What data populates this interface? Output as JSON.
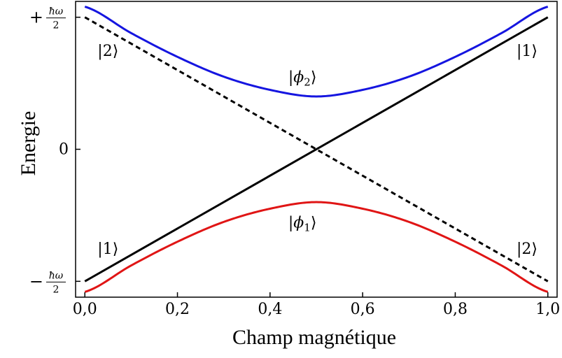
{
  "chart_data": {
    "type": "line",
    "title": "",
    "xlabel": "Champ magnétique",
    "ylabel": "Energie",
    "xlim": [
      -0.02,
      1.02
    ],
    "ylim": [
      -1.12,
      1.12
    ],
    "grid": false,
    "legend": "none",
    "x_ticks": [
      {
        "value": 0.0,
        "label": "0,0"
      },
      {
        "value": 0.2,
        "label": "0,2"
      },
      {
        "value": 0.4,
        "label": "0,4"
      },
      {
        "value": 0.6,
        "label": "0,6"
      },
      {
        "value": 0.8,
        "label": "0,8"
      },
      {
        "value": 1.0,
        "label": "1,0"
      }
    ],
    "y_ticks": [
      {
        "value": 1.0,
        "sign": "+",
        "numerator": "ħω",
        "denominator": "2"
      },
      {
        "value": 0.0,
        "label": "0"
      },
      {
        "value": -1.0,
        "sign": "−",
        "numerator": "ħω",
        "denominator": "2"
      }
    ],
    "series": [
      {
        "id": "diabatic-1",
        "color": "#000000",
        "style": "solid",
        "x": [
          0.0,
          1.0
        ],
        "y": [
          -1.0,
          1.0
        ]
      },
      {
        "id": "diabatic-2",
        "color": "#000000",
        "style": "dashed",
        "x": [
          0.0,
          1.0
        ],
        "y": [
          1.0,
          -1.0
        ]
      },
      {
        "id": "adiabatic-phi2",
        "color": "#1515e0",
        "style": "solid",
        "x": [
          0.0,
          0.1,
          0.2,
          0.3,
          0.4,
          0.5,
          0.6,
          0.7,
          0.8,
          0.9,
          1.0
        ],
        "y": [
          1.08,
          0.88,
          0.7,
          0.55,
          0.45,
          0.4,
          0.45,
          0.55,
          0.7,
          0.88,
          1.08
        ]
      },
      {
        "id": "adiabatic-phi1",
        "color": "#e01515",
        "style": "solid",
        "x": [
          0.0,
          0.1,
          0.2,
          0.3,
          0.4,
          0.5,
          0.6,
          0.7,
          0.8,
          0.9,
          1.0
        ],
        "y": [
          -1.08,
          -0.88,
          -0.7,
          -0.55,
          -0.45,
          -0.4,
          -0.45,
          -0.55,
          -0.7,
          -0.88,
          -1.08
        ]
      }
    ],
    "annotations": [
      {
        "id": "ket2-left",
        "text": "|2⟩",
        "x": 0.05,
        "y": 0.75
      },
      {
        "id": "ket1-right",
        "text": "|1⟩",
        "x": 0.955,
        "y": 0.75
      },
      {
        "id": "phi2",
        "ket_left": "|",
        "symbol": "ϕ",
        "sub": "2",
        "ket_right": "⟩",
        "x": 0.47,
        "y": 0.55
      },
      {
        "id": "phi1",
        "ket_left": "|",
        "symbol": "ϕ",
        "sub": "1",
        "ket_right": "⟩",
        "x": 0.47,
        "y": -0.55
      },
      {
        "id": "ket1-left",
        "text": "|1⟩",
        "x": 0.05,
        "y": -0.75
      },
      {
        "id": "ket2-right",
        "text": "|2⟩",
        "x": 0.955,
        "y": -0.75
      }
    ]
  }
}
